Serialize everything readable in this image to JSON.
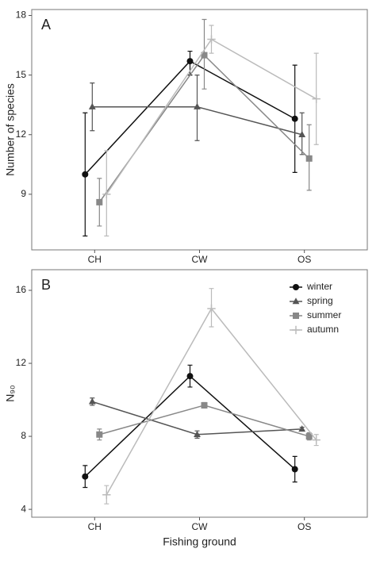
{
  "chart_data": [
    {
      "type": "line",
      "panel_label": "A",
      "y_label": "Number of species",
      "categories": [
        "CH",
        "CW",
        "OS"
      ],
      "ylim": [
        6.2,
        18.3
      ],
      "yticks": [
        9,
        12,
        15,
        18
      ],
      "legend": false,
      "series": [
        {
          "name": "winter",
          "color": "#111111",
          "marker": "circle",
          "values": [
            10.0,
            15.7,
            12.8
          ],
          "lower": [
            6.9,
            15.0,
            10.1
          ],
          "upper": [
            13.1,
            16.2,
            15.5
          ]
        },
        {
          "name": "spring",
          "color": "#555555",
          "marker": "triangle",
          "values": [
            13.4,
            13.4,
            12.0
          ],
          "lower": [
            12.2,
            11.7,
            11.0
          ],
          "upper": [
            14.6,
            15.0,
            13.1
          ]
        },
        {
          "name": "summer",
          "color": "#888888",
          "marker": "square",
          "values": [
            8.6,
            16.0,
            10.8
          ],
          "lower": [
            7.4,
            14.3,
            9.2
          ],
          "upper": [
            9.8,
            17.8,
            12.5
          ]
        },
        {
          "name": "autumn",
          "color": "#bbbbbb",
          "marker": "plus",
          "values": [
            9.0,
            16.8,
            13.8
          ],
          "lower": [
            6.9,
            16.1,
            11.5
          ],
          "upper": [
            11.2,
            17.5,
            16.1
          ]
        }
      ]
    },
    {
      "type": "line",
      "panel_label": "B",
      "y_label": "N₉₀",
      "x_label": "Fishing ground",
      "categories": [
        "CH",
        "CW",
        "OS"
      ],
      "ylim": [
        3.57,
        17.13
      ],
      "yticks": [
        4,
        8,
        12,
        16
      ],
      "legend": "top-right",
      "series": [
        {
          "name": "winter",
          "color": "#111111",
          "marker": "circle",
          "values": [
            5.8,
            11.3,
            6.2
          ],
          "lower": [
            5.2,
            10.7,
            5.5
          ],
          "upper": [
            6.4,
            11.9,
            6.9
          ]
        },
        {
          "name": "spring",
          "color": "#555555",
          "marker": "triangle",
          "values": [
            9.9,
            8.1,
            8.4
          ],
          "lower": [
            9.7,
            7.9,
            8.3
          ],
          "upper": [
            10.1,
            8.3,
            8.5
          ]
        },
        {
          "name": "summer",
          "color": "#888888",
          "marker": "square",
          "values": [
            8.1,
            9.7,
            8.0
          ],
          "lower": [
            7.8,
            9.55,
            7.8
          ],
          "upper": [
            8.4,
            9.85,
            8.2
          ]
        },
        {
          "name": "autumn",
          "color": "#bbbbbb",
          "marker": "plus",
          "values": [
            4.8,
            15.0,
            7.8
          ],
          "lower": [
            4.3,
            14.0,
            7.5
          ],
          "upper": [
            5.3,
            16.1,
            8.1
          ]
        }
      ]
    }
  ]
}
